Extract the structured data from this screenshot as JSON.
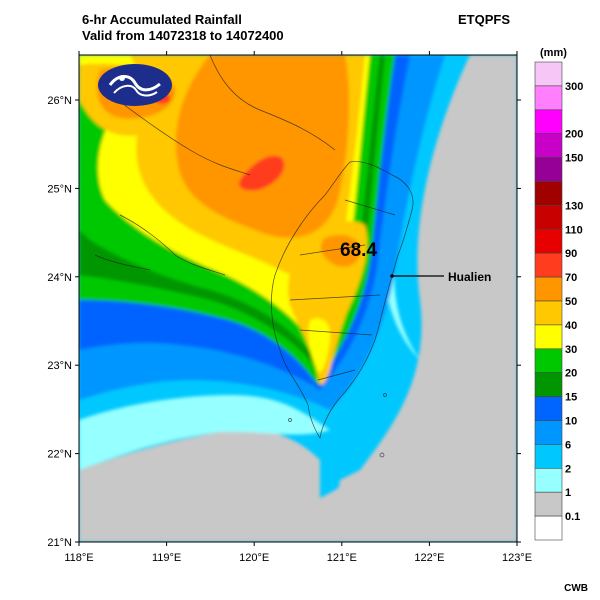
{
  "header": {
    "title_line1": "6-hr Accumulated Rainfall",
    "title_line2": "Valid from 14072318 to 14072400",
    "product": "ETQPFS"
  },
  "legend": {
    "unit": "(mm)",
    "levels": [
      {
        "label": "300",
        "color": "#f6c6f6"
      },
      {
        "label": "",
        "color": "#ff7fff"
      },
      {
        "label": "200",
        "color": "#ff00ff"
      },
      {
        "label": "150",
        "color": "#c800c8"
      },
      {
        "label": "",
        "color": "#960096"
      },
      {
        "label": "130",
        "color": "#a00000"
      },
      {
        "label": "110",
        "color": "#c80000"
      },
      {
        "label": "90",
        "color": "#e60000"
      },
      {
        "label": "70",
        "color": "#ff3c1e"
      },
      {
        "label": "50",
        "color": "#ff9600"
      },
      {
        "label": "40",
        "color": "#ffc800"
      },
      {
        "label": "30",
        "color": "#ffff00"
      },
      {
        "label": "20",
        "color": "#00c800"
      },
      {
        "label": "15",
        "color": "#009600"
      },
      {
        "label": "10",
        "color": "#0064ff"
      },
      {
        "label": "6",
        "color": "#0096ff"
      },
      {
        "label": "2",
        "color": "#00c8ff"
      },
      {
        "label": "1",
        "color": "#96ffff"
      },
      {
        "label": "0.1",
        "color": "#c8c8c8"
      },
      {
        "label": "",
        "color": "#ffffff"
      }
    ]
  },
  "axes": {
    "lon_ticks": [
      "118°E",
      "119°E",
      "120°E",
      "121°E",
      "122°E",
      "123°E"
    ],
    "lat_ticks": [
      "26°N",
      "25°N",
      "24°N",
      "23°N",
      "22°N",
      "21°N"
    ]
  },
  "annotations": {
    "max_value": "68.4",
    "station_label": "Hualien"
  },
  "credit": "CWB"
}
